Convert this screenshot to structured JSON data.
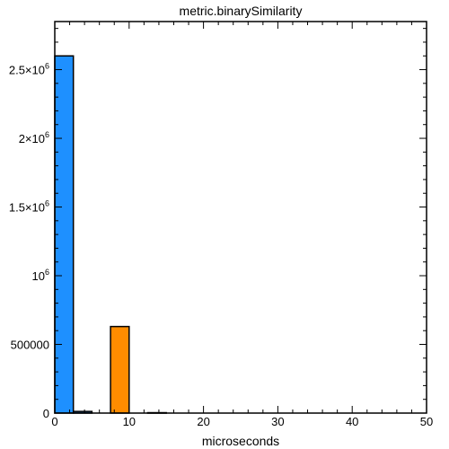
{
  "chart_data": {
    "type": "bar",
    "title": "metric.binarySimilarity",
    "xlabel": "microseconds",
    "ylabel": "",
    "xlim": [
      0,
      50
    ],
    "ylim": [
      0,
      2850000
    ],
    "bin_width": 2.5,
    "x_ticks": [
      0,
      10,
      20,
      30,
      40,
      50
    ],
    "x_tick_labels": [
      "0",
      "10",
      "20",
      "30",
      "40",
      "50"
    ],
    "y_ticks": [
      0,
      500000,
      1000000,
      1500000,
      2000000,
      2500000
    ],
    "y_tick_labels": [
      {
        "base": "0",
        "exp": ""
      },
      {
        "base": "500000",
        "exp": ""
      },
      {
        "base": "10",
        "exp": "6"
      },
      {
        "base": "1.5×10",
        "exp": "6"
      },
      {
        "base": "2×10",
        "exp": "6"
      },
      {
        "base": "2.5×10",
        "exp": "6"
      }
    ],
    "grid": false,
    "bars": [
      {
        "x0": 0,
        "x1": 2.5,
        "value": 2600000,
        "color": "#1e90ff"
      },
      {
        "x0": 2.5,
        "x1": 5,
        "value": 12000,
        "color": "#1e90ff"
      },
      {
        "x0": 7.5,
        "x1": 10,
        "value": 630000,
        "color": "#ff8c00"
      },
      {
        "x0": 12.5,
        "x1": 15,
        "value": 3000,
        "color": "#1e90ff"
      }
    ]
  }
}
